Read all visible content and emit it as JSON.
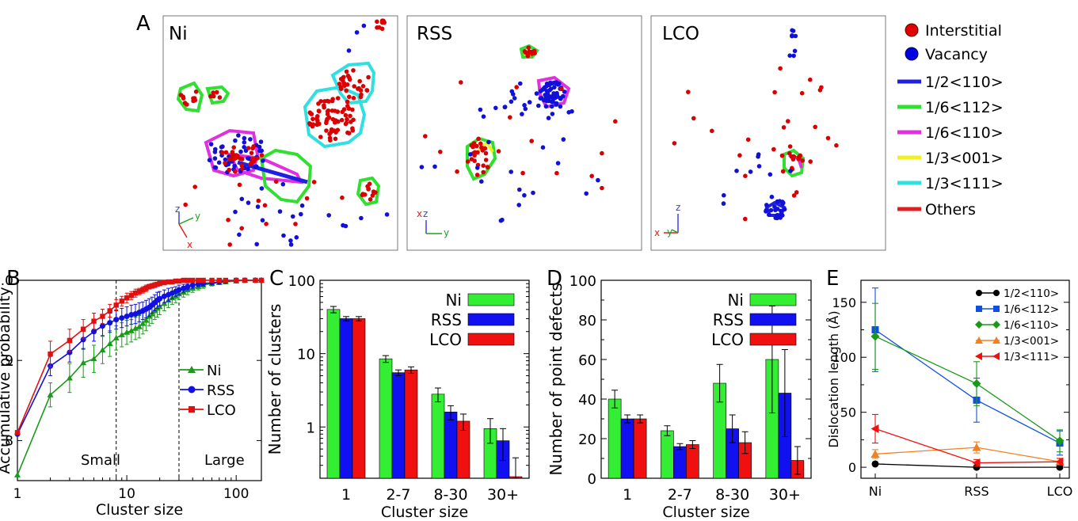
{
  "panel_letters": {
    "a": "A",
    "b": "B",
    "c": "C",
    "d": "D",
    "e": "E"
  },
  "panel_a": {
    "boxes": [
      {
        "label": "Ni"
      },
      {
        "label": "RSS"
      },
      {
        "label": "LCO"
      }
    ],
    "legend": [
      {
        "label": "Interstitial",
        "kind": "dot",
        "color": "#e00000"
      },
      {
        "label": "Vacancy",
        "kind": "dot",
        "color": "#0000e0"
      },
      {
        "label": "1/2<110>",
        "kind": "line",
        "color": "#2020e0"
      },
      {
        "label": "1/6<112>",
        "kind": "line",
        "color": "#30e030"
      },
      {
        "label": "1/6<110>",
        "kind": "line",
        "color": "#e030e0"
      },
      {
        "label": "1/3<001>",
        "kind": "line",
        "color": "#f0f020"
      },
      {
        "label": "1/3<111>",
        "kind": "line",
        "color": "#30e0e0"
      },
      {
        "label": "Others",
        "kind": "line",
        "color": "#e02020"
      }
    ],
    "axes_ni": {
      "z": "z",
      "y": "y",
      "x": "x"
    },
    "axes_rss": {
      "z": "z",
      "x": "x",
      "y": "y"
    },
    "axes_lco": {
      "z": "z",
      "x": "x",
      "y": "y"
    }
  },
  "chart_data": [
    {
      "panel": "B",
      "type": "line",
      "xscale": "log",
      "xlim": [
        1,
        170
      ],
      "ylim": [
        0.75,
        1.0
      ],
      "xlabel": "Cluster size",
      "ylabel": "Accumulative probability",
      "yticks": [
        0.8,
        0.9,
        1.0
      ],
      "ytick_labels": [
        "0.8",
        "0.9",
        "1.0"
      ],
      "xticks": [
        1,
        10,
        100
      ],
      "xtick_labels": [
        "1",
        "10",
        "100"
      ],
      "vlines": [
        8,
        30
      ],
      "annotations": [
        "Small",
        "Large"
      ],
      "legend_position": "center-right",
      "series": [
        {
          "name": "Ni",
          "color": "#1a9a1a",
          "marker": "triangle",
          "x": [
            1,
            2,
            3,
            4,
            5,
            6,
            7,
            8,
            9,
            10,
            11,
            12,
            13,
            14,
            15,
            16,
            17,
            18,
            19,
            20,
            22,
            24,
            26,
            28,
            30,
            33,
            36,
            40,
            45,
            50,
            60,
            70,
            80,
            100,
            120,
            150,
            170
          ],
          "y": [
            0.757,
            0.857,
            0.878,
            0.897,
            0.902,
            0.913,
            0.921,
            0.928,
            0.932,
            0.935,
            0.937,
            0.94,
            0.942,
            0.946,
            0.95,
            0.955,
            0.958,
            0.962,
            0.965,
            0.967,
            0.971,
            0.975,
            0.978,
            0.98,
            0.983,
            0.985,
            0.988,
            0.99,
            0.992,
            0.994,
            0.996,
            0.997,
            0.998,
            0.999,
            1.0,
            1.0,
            1.0
          ],
          "err": [
            0,
            0.015,
            0.018,
            0.018,
            0.017,
            0.017,
            0.016,
            0.015,
            0.015,
            0.015,
            0.014,
            0.014,
            0.014,
            0.013,
            0.013,
            0.012,
            0.012,
            0.011,
            0.011,
            0.01,
            0.009,
            0.009,
            0.008,
            0.008,
            0.007,
            0.006,
            0.006,
            0.005,
            0.004,
            0.004,
            0.003,
            0.002,
            0.002,
            0.001,
            0,
            0,
            0
          ]
        },
        {
          "name": "RSS",
          "color": "#1010e0",
          "marker": "circle",
          "x": [
            1,
            2,
            3,
            4,
            5,
            6,
            7,
            8,
            9,
            10,
            11,
            12,
            13,
            14,
            15,
            16,
            17,
            18,
            19,
            20,
            22,
            24,
            26,
            28,
            30,
            33,
            36,
            40,
            45,
            50,
            60,
            70,
            80,
            100,
            120,
            150,
            170
          ],
          "y": [
            0.808,
            0.893,
            0.91,
            0.926,
            0.936,
            0.943,
            0.947,
            0.951,
            0.953,
            0.955,
            0.957,
            0.958,
            0.96,
            0.962,
            0.964,
            0.966,
            0.969,
            0.972,
            0.975,
            0.977,
            0.98,
            0.982,
            0.984,
            0.986,
            0.988,
            0.99,
            0.992,
            0.994,
            0.995,
            0.996,
            0.997,
            0.998,
            0.999,
            1.0,
            1.0,
            1.0,
            1.0
          ],
          "err": [
            0,
            0.012,
            0.012,
            0.012,
            0.012,
            0.012,
            0.012,
            0.012,
            0.012,
            0.012,
            0.012,
            0.012,
            0.012,
            0.011,
            0.011,
            0.011,
            0.01,
            0.01,
            0.01,
            0.009,
            0.008,
            0.008,
            0.007,
            0.006,
            0.006,
            0.005,
            0.004,
            0.004,
            0.003,
            0.003,
            0.002,
            0.002,
            0.001,
            0,
            0,
            0,
            0
          ]
        },
        {
          "name": "LCO",
          "color": "#e01010",
          "marker": "square",
          "x": [
            1,
            2,
            3,
            4,
            5,
            6,
            7,
            8,
            9,
            10,
            11,
            12,
            13,
            14,
            15,
            16,
            17,
            18,
            19,
            20,
            22,
            24,
            26,
            28,
            30,
            33,
            36,
            40,
            45,
            50,
            60,
            70,
            80,
            100,
            120,
            150,
            170
          ],
          "y": [
            0.81,
            0.908,
            0.925,
            0.939,
            0.949,
            0.955,
            0.962,
            0.969,
            0.974,
            0.978,
            0.981,
            0.984,
            0.986,
            0.988,
            0.99,
            0.992,
            0.993,
            0.994,
            0.995,
            0.996,
            0.997,
            0.998,
            0.998,
            0.999,
            0.999,
            1.0,
            1.0,
            1.0,
            1.0,
            1.0,
            1.0,
            1.0,
            1.0,
            1.0,
            1.0,
            1.0,
            1.0
          ],
          "err": [
            0,
            0.016,
            0.014,
            0.012,
            0.01,
            0.009,
            0.008,
            0.007,
            0.006,
            0.006,
            0.005,
            0.005,
            0.004,
            0.004,
            0.004,
            0.003,
            0.003,
            0.003,
            0.002,
            0.002,
            0.002,
            0.001,
            0.001,
            0.001,
            0.001,
            0,
            0,
            0,
            0,
            0,
            0,
            0,
            0,
            0,
            0,
            0,
            0
          ]
        }
      ]
    },
    {
      "panel": "C",
      "type": "bar",
      "yscale": "log",
      "ylim": [
        0.2,
        100
      ],
      "xlabel": "Cluster size",
      "ylabel": "Number of clusters",
      "categories": [
        "1",
        "2-7",
        "8-30",
        "30+"
      ],
      "yticks": [
        1,
        10,
        100
      ],
      "ytick_labels": [
        "1",
        "10",
        "100"
      ],
      "legend_position": "top-right",
      "series": [
        {
          "name": "Ni",
          "color": "#33ee33",
          "values": [
            40,
            8.5,
            2.8,
            0.95
          ],
          "err": [
            4,
            0.9,
            0.6,
            0.35
          ]
        },
        {
          "name": "RSS",
          "color": "#1010f0",
          "values": [
            30,
            5.5,
            1.6,
            0.65
          ],
          "err": [
            2,
            0.5,
            0.35,
            0.3
          ]
        },
        {
          "name": "LCO",
          "color": "#f01010",
          "values": [
            30,
            6,
            1.2,
            0.21
          ],
          "err": [
            2,
            0.6,
            0.3,
            0.17
          ]
        }
      ]
    },
    {
      "panel": "D",
      "type": "bar",
      "ylim": [
        0,
        100
      ],
      "xlabel": "Cluster size",
      "ylabel": "Number of point defects",
      "categories": [
        "1",
        "2-7",
        "8-30",
        "30+"
      ],
      "yticks": [
        0,
        20,
        40,
        60,
        80,
        100
      ],
      "ytick_labels": [
        "0",
        "20",
        "40",
        "60",
        "80",
        "100"
      ],
      "legend_position": "top-right",
      "series": [
        {
          "name": "Ni",
          "color": "#33ee33",
          "values": [
            40,
            24,
            48,
            60
          ],
          "err": [
            4.5,
            2.5,
            9.5,
            27
          ]
        },
        {
          "name": "RSS",
          "color": "#1010f0",
          "values": [
            30,
            16,
            25,
            43
          ],
          "err": [
            2,
            1.5,
            7,
            22
          ]
        },
        {
          "name": "LCO",
          "color": "#f01010",
          "values": [
            30,
            17,
            18,
            9
          ],
          "err": [
            2,
            2,
            5.5,
            7
          ]
        }
      ]
    },
    {
      "panel": "E",
      "type": "line",
      "ylim": [
        -10,
        170
      ],
      "xlabel": "",
      "ylabel": "Dislocation length (Å)",
      "categories": [
        "Ni",
        "RSS",
        "LCO"
      ],
      "yticks": [
        0,
        50,
        100,
        150
      ],
      "ytick_labels": [
        "0",
        "50",
        "100",
        "150"
      ],
      "legend_position": "top-right",
      "series": [
        {
          "name": "1/2<110>",
          "color": "#000000",
          "marker": "circle",
          "values": [
            3,
            0,
            0
          ],
          "err": [
            0,
            0,
            0
          ]
        },
        {
          "name": "1/6<112>",
          "color": "#1050e0",
          "marker": "square",
          "values": [
            125,
            61,
            22
          ],
          "err": [
            38,
            20,
            11
          ]
        },
        {
          "name": "1/6<110>",
          "color": "#189a18",
          "marker": "diamond",
          "values": [
            119,
            76,
            24
          ],
          "err": [
            30,
            20,
            10
          ]
        },
        {
          "name": "1/3<001>",
          "color": "#f08020",
          "marker": "triangle-up",
          "values": [
            12,
            18,
            5
          ],
          "err": [
            4,
            5,
            3
          ]
        },
        {
          "name": "1/3<111>",
          "color": "#f01010",
          "marker": "triangle-left",
          "values": [
            35,
            4,
            5
          ],
          "err": [
            13,
            3,
            3
          ]
        }
      ]
    }
  ]
}
